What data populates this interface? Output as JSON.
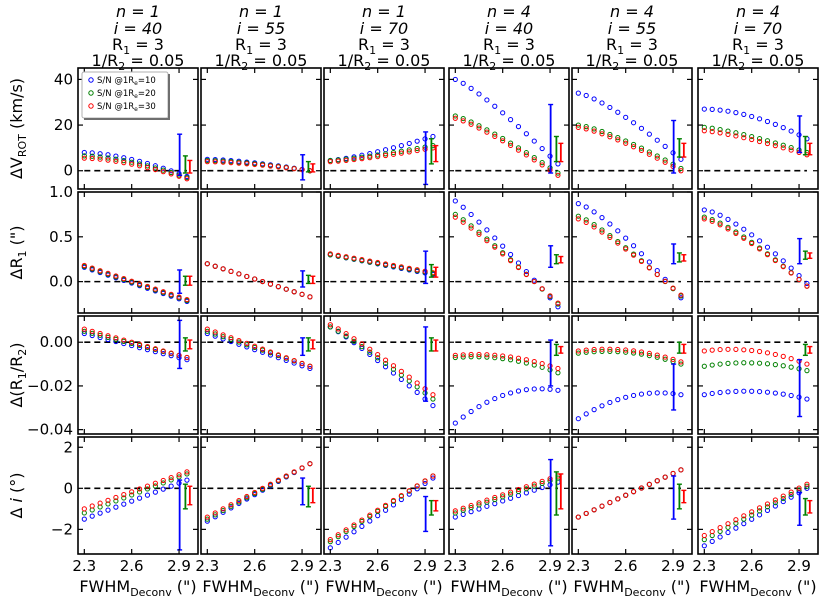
{
  "chart_data": {
    "type": "scatter",
    "title": "",
    "legend": {
      "position": "top-left of first panel",
      "entries": [
        {
          "sn": "S/N @1R",
          "sub": "e",
          "val": "=10",
          "color": "#0000ff"
        },
        {
          "sn": "S/N @1R",
          "sub": "e",
          "val": "=20",
          "color": "#008000"
        },
        {
          "sn": "S/N @1R",
          "sub": "e",
          "val": "=30",
          "color": "#ff0000"
        }
      ]
    },
    "x": {
      "label_main": "FWHM",
      "label_sub": "Deconv",
      "label_unit": " (\")",
      "range": [
        2.26,
        3.02
      ],
      "ticks": [
        2.3,
        2.6,
        2.9
      ],
      "tick_labels": [
        "2.3",
        "2.6",
        "2.9"
      ],
      "series_start": 2.3,
      "series_end": 2.95,
      "n_points": 14
    },
    "columns": [
      {
        "n": "n = 1",
        "i": "i = 40",
        "r1": "R",
        "r1sub": "1",
        "r1val": " = 3",
        "r2": "1/R",
        "r2sub": "2",
        "r2val": " = 0.05"
      },
      {
        "n": "n = 1",
        "i": "i = 55",
        "r1": "R",
        "r1sub": "1",
        "r1val": " = 3",
        "r2": "1/R",
        "r2sub": "2",
        "r2val": " = 0.05"
      },
      {
        "n": "n = 1",
        "i": "i = 70",
        "r1": "R",
        "r1sub": "1",
        "r1val": " = 3",
        "r2": "1/R",
        "r2sub": "2",
        "r2val": " = 0.05"
      },
      {
        "n": "n = 4",
        "i": "i = 40",
        "r1": "R",
        "r1sub": "1",
        "r1val": " = 3",
        "r2": "1/R",
        "r2sub": "2",
        "r2val": " = 0.05"
      },
      {
        "n": "n = 4",
        "i": "i = 55",
        "r1": "R",
        "r1sub": "1",
        "r1val": " = 3",
        "r2": "1/R",
        "r2sub": "2",
        "r2val": " = 0.05"
      },
      {
        "n": "n = 4",
        "i": "i = 70",
        "r1": "R",
        "r1sub": "1",
        "r1val": " = 3",
        "r2": "1/R",
        "r2sub": "2",
        "r2val": " = 0.05"
      }
    ],
    "rows": [
      {
        "ylabel": "ΔV",
        "ylabel_sub": "ROT",
        "ylabel_unit": " (km/s)",
        "ylim": [
          -8,
          45
        ],
        "ticks": [
          0,
          20,
          40
        ],
        "tick_labels": [
          "0",
          "20",
          "40"
        ],
        "reference": 0,
        "panels": [
          {
            "series": [
              [
                8,
                -2.5,
                1.6
              ],
              [
                6.5,
                -3,
                1.6
              ],
              [
                5.5,
                -3.5,
                1.6
              ]
            ],
            "errors": [
              [
                -2,
                16
              ],
              [
                -1,
                6.5
              ],
              [
                -1,
                4.5
              ]
            ]
          },
          {
            "series": [
              [
                5,
                0,
                1.5
              ],
              [
                4.5,
                0,
                1.5
              ],
              [
                4,
                0,
                1.5
              ]
            ],
            "errors": [
              [
                -4,
                7
              ],
              [
                -0.5,
                4
              ],
              [
                -0.5,
                3
              ]
            ]
          },
          {
            "series": [
              [
                4.5,
                15,
                1.3
              ],
              [
                4.5,
                11,
                1.3
              ],
              [
                4,
                10,
                1.3
              ]
            ],
            "errors": [
              [
                -6,
                17
              ],
              [
                3,
                14
              ],
              [
                4,
                11
              ]
            ]
          },
          {
            "series": [
              [
                40,
                3,
                1.2
              ],
              [
                24,
                -1,
                1.2
              ],
              [
                23,
                -2,
                1.2
              ]
            ],
            "errors": [
              [
                -1,
                29
              ],
              [
                4,
                15
              ],
              [
                4,
                12
              ]
            ]
          },
          {
            "series": [
              [
                34,
                5,
                1.3
              ],
              [
                20,
                1,
                1.3
              ],
              [
                19,
                0,
                1.3
              ]
            ],
            "errors": [
              [
                -1,
                22
              ],
              [
                6,
                14
              ],
              [
                6,
                12
              ]
            ]
          },
          {
            "series": [
              [
                27,
                14,
                1.8
              ],
              [
                19,
                8,
                1.3
              ],
              [
                17.5,
                7,
                1.3
              ]
            ],
            "errors": [
              [
                8,
                24
              ],
              [
                7,
                15
              ],
              [
                7,
                12
              ]
            ]
          }
        ]
      },
      {
        "ylabel": "ΔR",
        "ylabel_sub": "1",
        "ylabel_unit": " (\")",
        "ylim": [
          -0.35,
          1.0
        ],
        "ticks": [
          0.0,
          0.5,
          1.0
        ],
        "tick_labels": [
          "0.0",
          "0.5",
          "1.0"
        ],
        "reference": 0,
        "panels": [
          {
            "series": [
              [
                0.16,
                -0.22,
                1.0
              ],
              [
                0.17,
                -0.21,
                1.0
              ],
              [
                0.18,
                -0.2,
                1.0
              ]
            ],
            "errors": [
              [
                -0.13,
                0.13
              ],
              [
                -0.04,
                0.06
              ],
              [
                -0.04,
                0.06
              ]
            ]
          },
          {
            "series": [
              [
                0.2,
                -0.17,
                1.0
              ],
              [
                0.2,
                -0.17,
                1.0
              ],
              [
                0.2,
                -0.17,
                1.0
              ]
            ],
            "errors": [
              [
                -0.06,
                0.12
              ],
              [
                -0.02,
                0.07
              ],
              [
                -0.02,
                0.06
              ]
            ]
          },
          {
            "series": [
              [
                0.3,
                0.08,
                1.0
              ],
              [
                0.3,
                0.09,
                1.0
              ],
              [
                0.31,
                0.1,
                1.0
              ]
            ],
            "errors": [
              [
                -0.02,
                0.34
              ],
              [
                0.05,
                0.19
              ],
              [
                0.05,
                0.16
              ]
            ]
          },
          {
            "series": [
              [
                0.9,
                -0.28,
                1.1
              ],
              [
                0.75,
                -0.25,
                1.1
              ],
              [
                0.72,
                -0.24,
                1.1
              ]
            ],
            "errors": [
              [
                0.16,
                0.4
              ],
              [
                0.2,
                0.3
              ],
              [
                0.21,
                0.28
              ]
            ]
          },
          {
            "series": [
              [
                0.87,
                -0.18,
                1.3
              ],
              [
                0.73,
                -0.16,
                1.2
              ],
              [
                0.7,
                -0.15,
                1.2
              ]
            ],
            "errors": [
              [
                0.2,
                0.42
              ],
              [
                0.22,
                0.32
              ],
              [
                0.23,
                0.3
              ]
            ]
          },
          {
            "series": [
              [
                0.8,
                -0.02,
                1.4
              ],
              [
                0.72,
                -0.05,
                1.3
              ],
              [
                0.7,
                -0.05,
                1.3
              ]
            ],
            "errors": [
              [
                0.2,
                0.48
              ],
              [
                0.25,
                0.34
              ],
              [
                0.26,
                0.32
              ]
            ]
          }
        ]
      },
      {
        "ylabel": "Δ(R",
        "ylabel_sub": "1",
        "ylabel_unit": "/R",
        "ylabel_sub2": "2",
        "ylabel_end": ")",
        "ylim": [
          -0.042,
          0.012
        ],
        "ticks": [
          -0.04,
          -0.02,
          0.0
        ],
        "tick_labels": [
          "−0.04",
          "−0.02",
          "0.00"
        ],
        "reference": 0,
        "panels": [
          {
            "series": [
              [
                0.004,
                -0.008,
                1.0
              ],
              [
                0.005,
                -0.007,
                1.0
              ],
              [
                0.006,
                -0.007,
                1.0
              ]
            ],
            "errors": [
              [
                -0.012,
                0.01
              ],
              [
                -0.004,
                0.002
              ],
              [
                -0.003,
                0.001
              ]
            ]
          },
          {
            "series": [
              [
                0.004,
                -0.012,
                1.0
              ],
              [
                0.005,
                -0.011,
                1.0
              ],
              [
                0.006,
                -0.011,
                1.0
              ]
            ],
            "errors": [
              [
                -0.006,
                0.002
              ],
              [
                -0.004,
                0.002
              ],
              [
                -0.003,
                0.001
              ]
            ]
          },
          {
            "series": [
              [
                0.007,
                -0.029,
                1.1
              ],
              [
                0.007,
                -0.026,
                1.1
              ],
              [
                0.008,
                -0.024,
                1.1
              ]
            ],
            "errors": [
              [
                -0.027,
                0.007
              ],
              [
                -0.004,
                0.002
              ],
              [
                -0.004,
                0.001
              ]
            ]
          },
          {
            "series": [
              [
                -0.037,
                -0.022,
                0.0,
                -0.018
              ],
              [
                -0.007,
                -0.014,
                0.0,
                -0.005
              ],
              [
                -0.006,
                -0.012,
                0.0,
                -0.004
              ]
            ],
            "errors": [
              [
                -0.02,
                0.001
              ],
              [
                -0.006,
                -0.001
              ],
              [
                -0.005,
                -0.002
              ]
            ]
          },
          {
            "series": [
              [
                -0.035,
                -0.024,
                0.0,
                -0.02
              ],
              [
                -0.005,
                -0.01,
                0.0,
                -0.002
              ],
              [
                -0.004,
                -0.009,
                0.0,
                -0.001
              ]
            ],
            "errors": [
              [
                -0.031,
                -0.01
              ],
              [
                -0.005,
                0.0
              ],
              [
                -0.005,
                -0.001
              ]
            ]
          },
          {
            "series": [
              [
                -0.024,
                -0.026,
                0.0,
                -0.02
              ],
              [
                -0.011,
                -0.013,
                0.0,
                -0.007
              ],
              [
                -0.004,
                -0.01,
                0.0,
                -0.001
              ]
            ],
            "errors": [
              [
                -0.034,
                -0.008
              ],
              [
                -0.006,
                -0.001
              ],
              [
                -0.005,
                -0.002
              ]
            ]
          }
        ]
      },
      {
        "ylabel": "Δ",
        "ylabel_sub": "",
        "ylabel_unit": " i (°)",
        "ylim": [
          -3.2,
          2.5
        ],
        "ticks": [
          -2,
          0,
          2
        ],
        "tick_labels": [
          "−2",
          "0",
          "2"
        ],
        "reference": 0,
        "panels": [
          {
            "series": [
              [
                -1.5,
                0.4,
                1.0
              ],
              [
                -1.2,
                0.7,
                1.0
              ],
              [
                -1.0,
                0.8,
                1.0
              ]
            ],
            "errors": [
              [
                -3.0,
                0.4
              ],
              [
                -1.0,
                0.2
              ],
              [
                -0.8,
                0.1
              ]
            ]
          },
          {
            "series": [
              [
                -1.6,
                1.2,
                1.0
              ],
              [
                -1.5,
                1.2,
                1.0
              ],
              [
                -1.4,
                1.2,
                1.0
              ]
            ],
            "errors": [
              [
                -0.8,
                0.5
              ],
              [
                -0.9,
                0.1
              ],
              [
                -0.7,
                0.0
              ]
            ]
          },
          {
            "series": [
              [
                -2.9,
                0.5,
                1.0
              ],
              [
                -2.6,
                0.6,
                1.0
              ],
              [
                -2.5,
                0.6,
                1.0
              ]
            ],
            "errors": [
              [
                -2.1,
                -0.4
              ],
              [
                -1.3,
                -0.6
              ],
              [
                -1.1,
                -0.6
              ]
            ]
          },
          {
            "series": [
              [
                -1.4,
                0.3,
                1.0
              ],
              [
                -1.2,
                0.5,
                1.0
              ],
              [
                -1.1,
                0.6,
                1.0
              ]
            ],
            "errors": [
              [
                -2.8,
                1.4
              ],
              [
                -1.3,
                0.8
              ],
              [
                -1.0,
                0.7
              ]
            ]
          },
          {
            "series": [
              [
                -1.4,
                0.9,
                1.0
              ],
              [
                -1.4,
                0.9,
                1.0
              ],
              [
                -1.4,
                0.9,
                1.0
              ]
            ],
            "errors": [
              [
                -1.5,
                0.6
              ],
              [
                -1.0,
                0.2
              ],
              [
                -0.7,
                -0.1
              ]
            ]
          },
          {
            "series": [
              [
                -2.8,
                0.0,
                1.0
              ],
              [
                -2.5,
                0.1,
                1.0
              ],
              [
                -2.3,
                0.2,
                1.0
              ]
            ],
            "errors": [
              [
                -1.8,
                -0.2
              ],
              [
                -1.3,
                -0.5
              ],
              [
                -1.2,
                -0.6
              ]
            ]
          }
        ]
      }
    ]
  }
}
